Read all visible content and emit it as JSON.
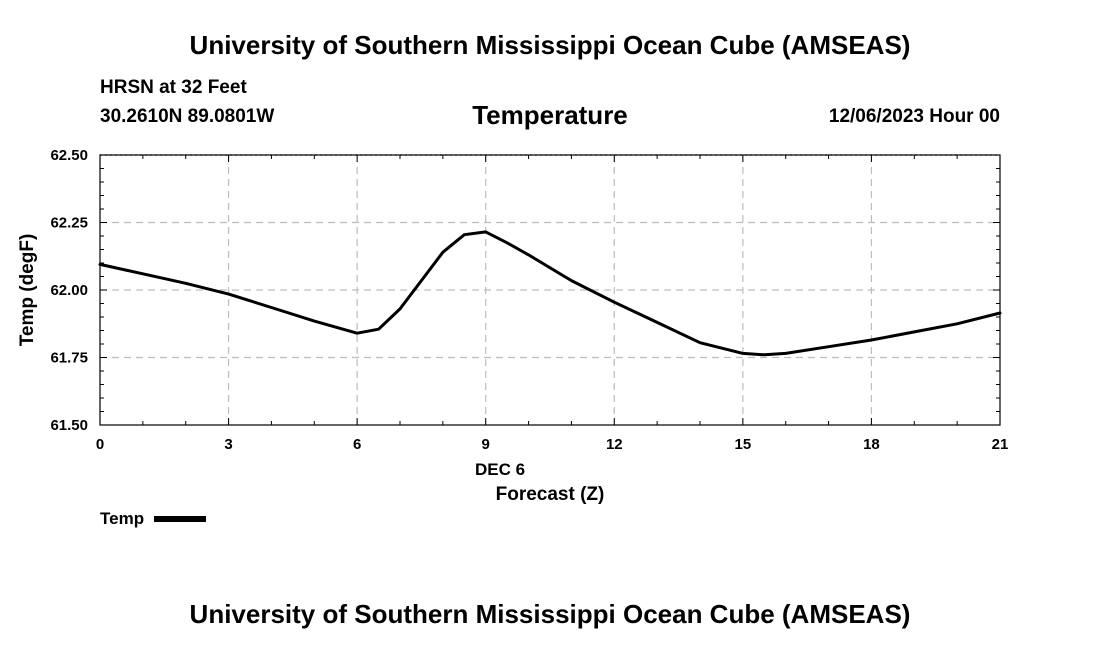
{
  "header": {
    "title": "University of Southern Mississippi Ocean Cube (AMSEAS)",
    "station": "HRSN at 32 Feet",
    "coords": "30.2610N  89.0801W",
    "variable": "Temperature",
    "datetime": "12/06/2023 Hour 00"
  },
  "footer": {
    "title": "University of Southern Mississippi Ocean Cube (AMSEAS)"
  },
  "legend": {
    "label": "Temp"
  },
  "chart_data": {
    "type": "line",
    "title": "Temperature",
    "xlabel": "Forecast (Z)",
    "xlabel_date": "DEC 6",
    "ylabel": "Temp (degF)",
    "xlim": [
      0,
      21
    ],
    "ylim": [
      61.5,
      62.5
    ],
    "xticks": [
      0,
      3,
      6,
      9,
      12,
      15,
      18,
      21
    ],
    "yticks": [
      "61.50",
      "61.75",
      "62.00",
      "62.25",
      "62.50"
    ],
    "grid": true,
    "legend_position": "bottom-left",
    "series": [
      {
        "name": "Temp",
        "color": "#000000",
        "x": [
          0,
          1,
          2,
          3,
          4,
          5,
          6,
          6.5,
          7,
          8,
          8.5,
          9,
          9.5,
          10,
          11,
          12,
          13,
          14,
          15,
          15.5,
          16,
          17,
          18,
          19,
          20,
          21
        ],
        "y": [
          62.095,
          62.06,
          62.025,
          61.985,
          61.935,
          61.885,
          61.84,
          61.855,
          61.93,
          62.14,
          62.205,
          62.215,
          62.175,
          62.13,
          62.035,
          61.955,
          61.88,
          61.805,
          61.765,
          61.76,
          61.765,
          61.79,
          61.815,
          61.845,
          61.875,
          61.915
        ]
      }
    ]
  }
}
